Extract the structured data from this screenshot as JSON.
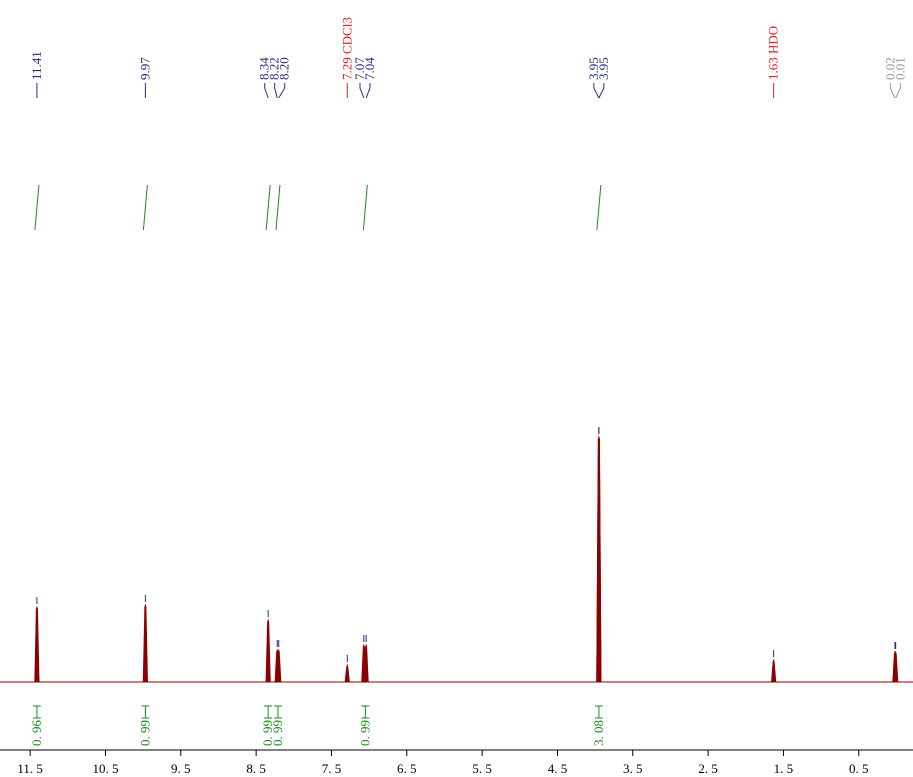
{
  "chart_data": {
    "type": "nmr",
    "xlim": [
      11.9,
      -0.22
    ],
    "ylim": [
      0,
      260
    ],
    "xticks": [
      {
        "value": 11.5,
        "label": "11. 5"
      },
      {
        "value": 10.5,
        "label": "10. 5"
      },
      {
        "value": 9.5,
        "label": "9. 5"
      },
      {
        "value": 8.5,
        "label": "8. 5"
      },
      {
        "value": 7.5,
        "label": "7. 5"
      },
      {
        "value": 6.5,
        "label": "6. 5"
      },
      {
        "value": 5.5,
        "label": "5. 5"
      },
      {
        "value": 4.5,
        "label": "4. 5"
      },
      {
        "value": 3.5,
        "label": "3. 5"
      },
      {
        "value": 2.5,
        "label": "2. 5"
      },
      {
        "value": 1.5,
        "label": "1. 5"
      },
      {
        "value": 0.5,
        "label": "0. 5"
      }
    ],
    "spectrum_color": "#8b0000",
    "integral_color": "#1a8a1a",
    "peaks": [
      {
        "ppm": 11.41,
        "label": "11.41",
        "height": 75,
        "color": "#2a2a8a"
      },
      {
        "ppm": 9.97,
        "label": "9.97",
        "height": 77,
        "color": "#2a2a8a"
      },
      {
        "ppm": 8.34,
        "label": "8.34",
        "height": 62,
        "color": "#2a2a8a"
      },
      {
        "ppm": 8.22,
        "label": "8.22",
        "height": 32,
        "color": "#2a2a8a"
      },
      {
        "ppm": 8.2,
        "label": "8.20",
        "height": 32,
        "color": "#2a2a8a"
      },
      {
        "ppm": 7.29,
        "label": "7.29 CDCl3",
        "height": 17,
        "color": "#e02020"
      },
      {
        "ppm": 7.07,
        "label": "7.07",
        "height": 37,
        "color": "#2a2a8a"
      },
      {
        "ppm": 7.04,
        "label": "7.04",
        "height": 37,
        "color": "#2a2a8a"
      },
      {
        "ppm": 3.95,
        "label": "3.95",
        "height": 245,
        "color": "#2a2a8a"
      },
      {
        "ppm": 3.95,
        "label": "3.95",
        "height": 245,
        "color": "#2a2a8a"
      },
      {
        "ppm": 1.63,
        "label": "1.63 HDO",
        "height": 22,
        "color": "#e02020"
      },
      {
        "ppm": 0.02,
        "label": "0.02",
        "height": 30,
        "color": "#999999"
      },
      {
        "ppm": 0.01,
        "label": "0.01",
        "height": 30,
        "color": "#999999"
      }
    ],
    "integrals": [
      {
        "ppm": 11.41,
        "value": 0.96,
        "label": "0. 96"
      },
      {
        "ppm": 9.97,
        "value": 0.99,
        "label": "0. 99"
      },
      {
        "ppm": 8.34,
        "value": 0.99,
        "label": "0. 99"
      },
      {
        "ppm": 8.21,
        "value": 0.99,
        "label": "0. 99"
      },
      {
        "ppm": 7.05,
        "value": 0.99,
        "label": "0. 99"
      },
      {
        "ppm": 3.95,
        "value": 3.08,
        "label": "3. 08"
      }
    ]
  }
}
